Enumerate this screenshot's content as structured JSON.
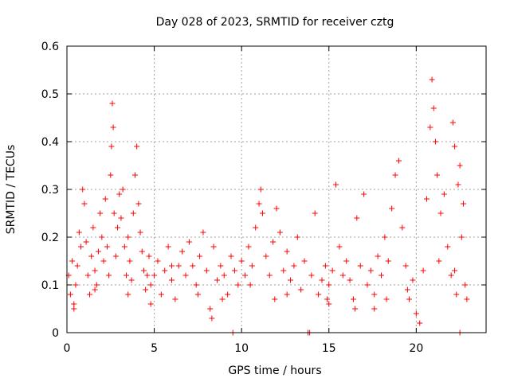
{
  "chart_data": {
    "type": "scatter",
    "title": "Day 028 of 2023, SRMTID for receiver cztg",
    "xlabel": "GPS time / hours",
    "ylabel": "SRMTID / TECUs",
    "xlim": [
      0,
      24
    ],
    "ylim": [
      0,
      0.6
    ],
    "x_ticks": [
      0,
      5,
      10,
      15,
      20
    ],
    "x_tick_labels": [
      "0",
      "5",
      "10",
      "15",
      "20"
    ],
    "y_ticks": [
      0,
      0.1,
      0.2,
      0.3,
      0.4,
      0.5,
      0.6
    ],
    "y_tick_labels": [
      "0",
      "0.1",
      "0.2",
      "0.3",
      "0.4",
      "0.5",
      "0.6"
    ],
    "grid": true,
    "marker": "plus",
    "color": "#ff0000",
    "series": [
      {
        "name": "SRMTID",
        "points": [
          [
            0.1,
            0.12
          ],
          [
            0.2,
            0.08
          ],
          [
            0.3,
            0.15
          ],
          [
            0.4,
            0.06
          ],
          [
            0.5,
            0.1
          ],
          [
            0.6,
            0.14
          ],
          [
            0.7,
            0.21
          ],
          [
            0.8,
            0.18
          ],
          [
            0.9,
            0.3
          ],
          [
            1.0,
            0.27
          ],
          [
            1.1,
            0.19
          ],
          [
            1.2,
            0.12
          ],
          [
            1.3,
            0.08
          ],
          [
            1.4,
            0.16
          ],
          [
            1.5,
            0.22
          ],
          [
            1.6,
            0.13
          ],
          [
            1.7,
            0.1
          ],
          [
            1.8,
            0.17
          ],
          [
            1.9,
            0.25
          ],
          [
            2.0,
            0.2
          ],
          [
            2.1,
            0.15
          ],
          [
            2.2,
            0.28
          ],
          [
            2.3,
            0.18
          ],
          [
            2.4,
            0.12
          ],
          [
            2.5,
            0.33
          ],
          [
            2.55,
            0.39
          ],
          [
            2.6,
            0.48
          ],
          [
            2.65,
            0.43
          ],
          [
            2.7,
            0.25
          ],
          [
            2.8,
            0.16
          ],
          [
            2.9,
            0.22
          ],
          [
            3.0,
            0.29
          ],
          [
            3.1,
            0.24
          ],
          [
            3.2,
            0.3
          ],
          [
            3.3,
            0.18
          ],
          [
            3.4,
            0.12
          ],
          [
            3.5,
            0.2
          ],
          [
            3.6,
            0.15
          ],
          [
            3.7,
            0.11
          ],
          [
            3.8,
            0.25
          ],
          [
            3.9,
            0.33
          ],
          [
            4.0,
            0.39
          ],
          [
            4.1,
            0.27
          ],
          [
            4.2,
            0.21
          ],
          [
            4.3,
            0.17
          ],
          [
            4.4,
            0.13
          ],
          [
            4.5,
            0.09
          ],
          [
            4.6,
            0.12
          ],
          [
            4.7,
            0.16
          ],
          [
            4.8,
            0.1
          ],
          [
            5.0,
            0.12
          ],
          [
            5.2,
            0.15
          ],
          [
            5.4,
            0.08
          ],
          [
            5.6,
            0.13
          ],
          [
            5.8,
            0.18
          ],
          [
            6.0,
            0.11
          ],
          [
            6.2,
            0.07
          ],
          [
            6.4,
            0.14
          ],
          [
            6.6,
            0.17
          ],
          [
            6.8,
            0.12
          ],
          [
            7.0,
            0.19
          ],
          [
            7.2,
            0.14
          ],
          [
            7.4,
            0.1
          ],
          [
            7.6,
            0.16
          ],
          [
            7.8,
            0.21
          ],
          [
            8.0,
            0.13
          ],
          [
            8.2,
            0.05
          ],
          [
            8.3,
            0.03
          ],
          [
            8.4,
            0.18
          ],
          [
            8.6,
            0.11
          ],
          [
            8.8,
            0.14
          ],
          [
            9.0,
            0.12
          ],
          [
            9.2,
            0.08
          ],
          [
            9.4,
            0.16
          ],
          [
            9.5,
            0.0
          ],
          [
            9.6,
            0.13
          ],
          [
            9.8,
            0.1
          ],
          [
            10.0,
            0.15
          ],
          [
            10.2,
            0.12
          ],
          [
            10.4,
            0.18
          ],
          [
            10.6,
            0.14
          ],
          [
            10.8,
            0.22
          ],
          [
            11.0,
            0.27
          ],
          [
            11.1,
            0.3
          ],
          [
            11.2,
            0.25
          ],
          [
            11.4,
            0.16
          ],
          [
            11.6,
            0.12
          ],
          [
            11.8,
            0.19
          ],
          [
            12.0,
            0.26
          ],
          [
            12.2,
            0.21
          ],
          [
            12.4,
            0.13
          ],
          [
            12.6,
            0.17
          ],
          [
            12.8,
            0.11
          ],
          [
            13.0,
            0.14
          ],
          [
            13.2,
            0.2
          ],
          [
            13.4,
            0.09
          ],
          [
            13.6,
            0.15
          ],
          [
            13.8,
            0.0
          ],
          [
            13.9,
            0.0
          ],
          [
            14.0,
            0.12
          ],
          [
            14.2,
            0.25
          ],
          [
            14.4,
            0.08
          ],
          [
            14.6,
            0.11
          ],
          [
            14.8,
            0.14
          ],
          [
            15.0,
            0.1
          ],
          [
            15.2,
            0.13
          ],
          [
            15.4,
            0.31
          ],
          [
            15.6,
            0.18
          ],
          [
            15.8,
            0.12
          ],
          [
            16.0,
            0.15
          ],
          [
            16.2,
            0.11
          ],
          [
            16.4,
            0.07
          ],
          [
            16.6,
            0.24
          ],
          [
            16.8,
            0.14
          ],
          [
            17.0,
            0.29
          ],
          [
            17.2,
            0.1
          ],
          [
            17.4,
            0.13
          ],
          [
            17.6,
            0.08
          ],
          [
            17.8,
            0.16
          ],
          [
            18.0,
            0.12
          ],
          [
            18.2,
            0.2
          ],
          [
            18.4,
            0.15
          ],
          [
            18.6,
            0.26
          ],
          [
            18.8,
            0.33
          ],
          [
            19.0,
            0.36
          ],
          [
            19.2,
            0.22
          ],
          [
            19.4,
            0.14
          ],
          [
            19.6,
            0.07
          ],
          [
            19.8,
            0.11
          ],
          [
            20.0,
            0.04
          ],
          [
            20.2,
            0.02
          ],
          [
            20.4,
            0.13
          ],
          [
            20.6,
            0.28
          ],
          [
            20.8,
            0.43
          ],
          [
            20.9,
            0.53
          ],
          [
            21.0,
            0.47
          ],
          [
            21.1,
            0.4
          ],
          [
            21.2,
            0.33
          ],
          [
            21.4,
            0.25
          ],
          [
            21.6,
            0.29
          ],
          [
            21.8,
            0.18
          ],
          [
            22.0,
            0.12
          ],
          [
            22.1,
            0.44
          ],
          [
            22.2,
            0.39
          ],
          [
            22.3,
            0.08
          ],
          [
            22.4,
            0.31
          ],
          [
            22.5,
            0.35
          ],
          [
            22.6,
            0.2
          ],
          [
            22.7,
            0.27
          ],
          [
            22.8,
            0.1
          ],
          [
            22.9,
            0.07
          ],
          [
            22.5,
            0.0
          ],
          [
            0.4,
            0.05
          ],
          [
            1.6,
            0.09
          ],
          [
            3.5,
            0.08
          ],
          [
            6.0,
            0.14
          ],
          [
            7.5,
            0.08
          ],
          [
            10.5,
            0.1
          ],
          [
            12.6,
            0.08
          ],
          [
            15.0,
            0.06
          ],
          [
            17.6,
            0.05
          ],
          [
            19.5,
            0.09
          ],
          [
            21.3,
            0.15
          ],
          [
            22.2,
            0.13
          ],
          [
            4.8,
            0.06
          ],
          [
            8.9,
            0.07
          ],
          [
            11.9,
            0.07
          ],
          [
            14.9,
            0.07
          ],
          [
            16.5,
            0.05
          ],
          [
            18.3,
            0.07
          ]
        ]
      }
    ]
  }
}
